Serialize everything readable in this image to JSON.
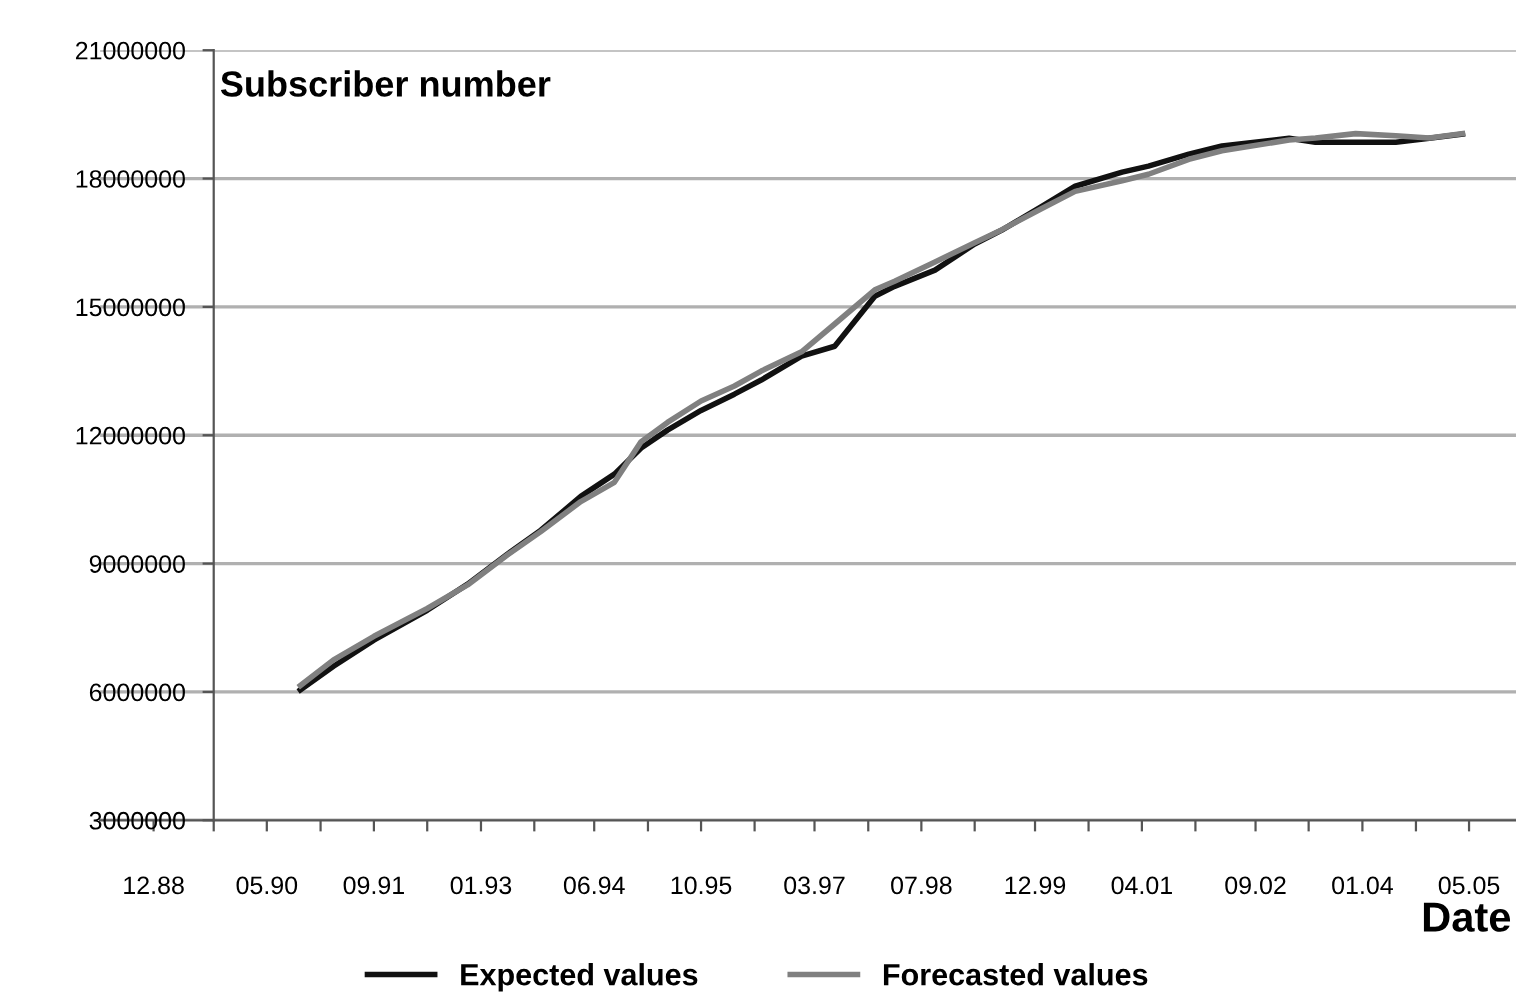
{
  "chart_data": {
    "type": "line",
    "xlabel": "Date",
    "ylabel": "Subscriber number",
    "xlim": [
      "1988-04",
      "2005-12"
    ],
    "ylim": [
      3000000,
      21000000
    ],
    "xticks": [
      {
        "value": "1988-12",
        "label": "12.88"
      },
      {
        "value": "1989-09",
        "label": null
      },
      {
        "value": "1990-05",
        "label": "05.90"
      },
      {
        "value": "1991-01",
        "label": null
      },
      {
        "value": "1991-09",
        "label": "09.91"
      },
      {
        "value": "1992-05",
        "label": null
      },
      {
        "value": "1993-01",
        "label": "01.93"
      },
      {
        "value": "1993-09",
        "label": null
      },
      {
        "value": "1994-06",
        "label": "06.94"
      },
      {
        "value": "1995-02",
        "label": null
      },
      {
        "value": "1995-10",
        "label": "10.95"
      },
      {
        "value": "1996-06",
        "label": null
      },
      {
        "value": "1997-03",
        "label": "03.97"
      },
      {
        "value": "1997-11",
        "label": null
      },
      {
        "value": "1998-07",
        "label": "07.98"
      },
      {
        "value": "1999-03",
        "label": null
      },
      {
        "value": "1999-12",
        "label": "12.99"
      },
      {
        "value": "2000-08",
        "label": null
      },
      {
        "value": "2001-04",
        "label": "04.01"
      },
      {
        "value": "2001-12",
        "label": null
      },
      {
        "value": "2002-09",
        "label": "09.02"
      },
      {
        "value": "2003-05",
        "label": null
      },
      {
        "value": "2004-01",
        "label": "01.04"
      },
      {
        "value": "2004-09",
        "label": null
      },
      {
        "value": "2005-05",
        "label": "05.05"
      }
    ],
    "yticks": [
      3000000,
      6000000,
      9000000,
      12000000,
      15000000,
      18000000,
      21000000
    ],
    "grid": "y",
    "legend": "bottom",
    "marker": "none",
    "line_style": "solid",
    "series": [
      {
        "name": "Expected values",
        "color": "#111111",
        "x": [
          "1990-10",
          "1991-03",
          "1991-09",
          "1992-05",
          "1992-11",
          "1993-05",
          "1993-10",
          "1994-04",
          "1994-09",
          "1995-01",
          "1995-05",
          "1995-10",
          "1996-03",
          "1996-07",
          "1997-01",
          "1997-06",
          "1997-12",
          "1998-03",
          "1998-09",
          "1999-03",
          "1999-07",
          "2000-01",
          "2000-06",
          "2001-01",
          "2001-05",
          "2001-11",
          "2002-04",
          "2003-02",
          "2003-06",
          "2003-12",
          "2004-06",
          "2004-11",
          "2005-04"
        ],
        "values": [
          6050000,
          6600000,
          7210000,
          7910000,
          8520000,
          9220000,
          9780000,
          10570000,
          11090000,
          11700000,
          12120000,
          12580000,
          12960000,
          13290000,
          13850000,
          14080000,
          15250000,
          15480000,
          15860000,
          16470000,
          16790000,
          17350000,
          17820000,
          18150000,
          18290000,
          18570000,
          18760000,
          18940000,
          18850000,
          18850000,
          18850000,
          18940000,
          19040000
        ]
      },
      {
        "name": "Forecasted values",
        "color": "#808080",
        "x": [
          "1990-10",
          "1991-03",
          "1991-09",
          "1992-05",
          "1992-11",
          "1993-05",
          "1993-10",
          "1994-04",
          "1994-09",
          "1995-01",
          "1995-05",
          "1995-10",
          "1996-03",
          "1996-07",
          "1997-01",
          "1997-06",
          "1997-12",
          "1998-03",
          "1998-09",
          "1999-03",
          "1999-07",
          "2000-01",
          "2000-06",
          "2001-01",
          "2001-05",
          "2001-11",
          "2002-04",
          "2003-02",
          "2003-06",
          "2003-12",
          "2004-06",
          "2004-11",
          "2005-04"
        ],
        "values": [
          6150000,
          6750000,
          7300000,
          7950000,
          8500000,
          9200000,
          9750000,
          10450000,
          10900000,
          11850000,
          12300000,
          12800000,
          13150000,
          13500000,
          13950000,
          14600000,
          15400000,
          15600000,
          16050000,
          16500000,
          16800000,
          17300000,
          17700000,
          17950000,
          18100000,
          18450000,
          18650000,
          18900000,
          18950000,
          19050000,
          19000000,
          18950000,
          19050000
        ]
      }
    ]
  }
}
